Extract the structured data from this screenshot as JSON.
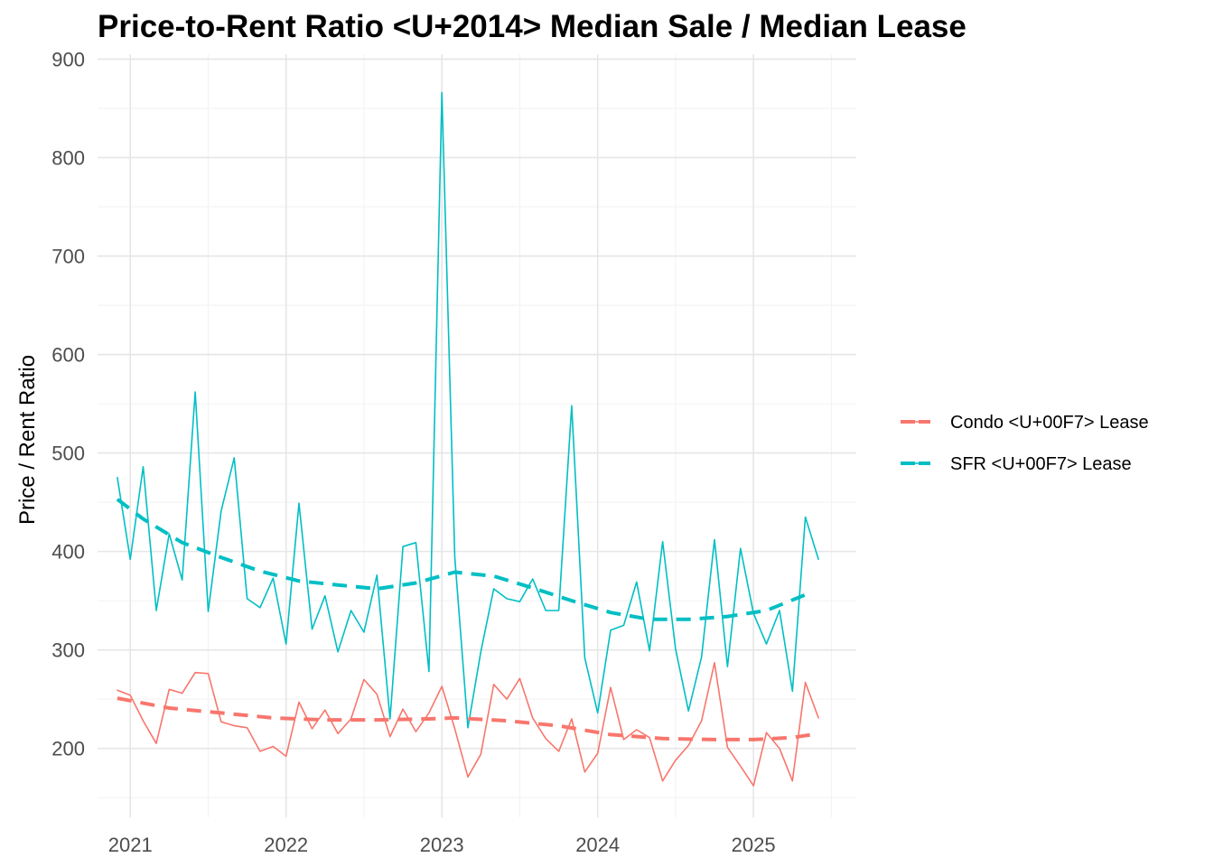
{
  "chart_data": {
    "type": "line",
    "title": "Price-to-Rent Ratio <U+2014> Median Sale / Median Lease",
    "xlabel": "",
    "ylabel": "Price / Rent Ratio",
    "xlim": [
      2020.79,
      2025.66
    ],
    "ylim": [
      130,
      905
    ],
    "x_ticks": [
      2021,
      2022,
      2023,
      2024,
      2025
    ],
    "y_ticks": [
      200,
      300,
      400,
      500,
      600,
      700,
      800,
      900
    ],
    "grid": true,
    "legend_position": "right",
    "series": [
      {
        "name": "Condo <U+00F7> Lease",
        "color": "#F8766D",
        "x": [
          2020.917,
          2021.0,
          2021.083,
          2021.167,
          2021.25,
          2021.333,
          2021.417,
          2021.5,
          2021.583,
          2021.667,
          2021.75,
          2021.833,
          2021.917,
          2022.0,
          2022.083,
          2022.167,
          2022.25,
          2022.333,
          2022.417,
          2022.5,
          2022.583,
          2022.667,
          2022.75,
          2022.833,
          2022.917,
          2023.0,
          2023.083,
          2023.167,
          2023.25,
          2023.333,
          2023.417,
          2023.5,
          2023.583,
          2023.667,
          2023.75,
          2023.833,
          2023.917,
          2024.0,
          2024.083,
          2024.167,
          2024.25,
          2024.333,
          2024.417,
          2024.5,
          2024.583,
          2024.667,
          2024.75,
          2024.833,
          2024.917,
          2025.0,
          2025.083,
          2025.167,
          2025.25,
          2025.333,
          2025.417
        ],
        "values": [
          259,
          254,
          228,
          205,
          260,
          256,
          277,
          276,
          227,
          223,
          221,
          197,
          202,
          192,
          247,
          220,
          239,
          215,
          230,
          270,
          255,
          212,
          240,
          217,
          236,
          263,
          220,
          171,
          194,
          265,
          250,
          271,
          231,
          210,
          197,
          230,
          176,
          195,
          262,
          209,
          219,
          211,
          167,
          188,
          203,
          228,
          287,
          201,
          182,
          162,
          216,
          200,
          167,
          267,
          231
        ]
      },
      {
        "name": "SFR <U+00F7> Lease",
        "color": "#00BFC4",
        "x": [
          2020.917,
          2021.0,
          2021.083,
          2021.167,
          2021.25,
          2021.333,
          2021.417,
          2021.5,
          2021.583,
          2021.667,
          2021.75,
          2021.833,
          2021.917,
          2022.0,
          2022.083,
          2022.167,
          2022.25,
          2022.333,
          2022.417,
          2022.5,
          2022.583,
          2022.667,
          2022.75,
          2022.833,
          2022.917,
          2023.0,
          2023.083,
          2023.167,
          2023.25,
          2023.333,
          2023.417,
          2023.5,
          2023.583,
          2023.667,
          2023.75,
          2023.833,
          2023.917,
          2024.0,
          2024.083,
          2024.167,
          2024.25,
          2024.333,
          2024.417,
          2024.5,
          2024.583,
          2024.667,
          2024.75,
          2024.833,
          2024.917,
          2025.0,
          2025.083,
          2025.167,
          2025.25,
          2025.333,
          2025.417
        ],
        "values": [
          475,
          392,
          486,
          340,
          418,
          371,
          562,
          339,
          441,
          495,
          352,
          343,
          373,
          306,
          449,
          321,
          355,
          298,
          340,
          318,
          376,
          230,
          405,
          409,
          278,
          866,
          394,
          221,
          298,
          362,
          352,
          349,
          372,
          340,
          340,
          548,
          292,
          236,
          320,
          325,
          369,
          299,
          410,
          301,
          238,
          293,
          412,
          283,
          403,
          337,
          306,
          340,
          258,
          435,
          392
        ]
      },
      {
        "name": "Condo <U+00F7> Lease trend",
        "color": "#F8766D",
        "dashed": true,
        "x": [
          2020.917,
          2021.25,
          2021.583,
          2021.917,
          2022.25,
          2022.583,
          2022.917,
          2023.083,
          2023.417,
          2023.75,
          2024.083,
          2024.417,
          2024.75,
          2025.0,
          2025.25,
          2025.417
        ],
        "values": [
          251,
          241,
          236,
          231,
          229,
          229,
          230,
          231,
          228,
          223,
          214,
          210,
          209,
          209,
          211,
          215
        ]
      },
      {
        "name": "SFR <U+00F7> Lease trend",
        "color": "#00BFC4",
        "dashed": true,
        "x": [
          2020.917,
          2021.083,
          2021.333,
          2021.583,
          2021.833,
          2022.083,
          2022.333,
          2022.583,
          2022.833,
          2023.083,
          2023.333,
          2023.583,
          2023.833,
          2024.083,
          2024.333,
          2024.583,
          2024.833,
          2025.083,
          2025.333
        ],
        "values": [
          453,
          433,
          409,
          394,
          380,
          370,
          366,
          362,
          368,
          379,
          375,
          363,
          350,
          338,
          331,
          331,
          334,
          340,
          356
        ]
      }
    ],
    "legend": [
      {
        "label": "Condo <U+00F7> Lease",
        "color": "#F8766D"
      },
      {
        "label": "SFR <U+00F7> Lease",
        "color": "#00BFC4"
      }
    ]
  }
}
